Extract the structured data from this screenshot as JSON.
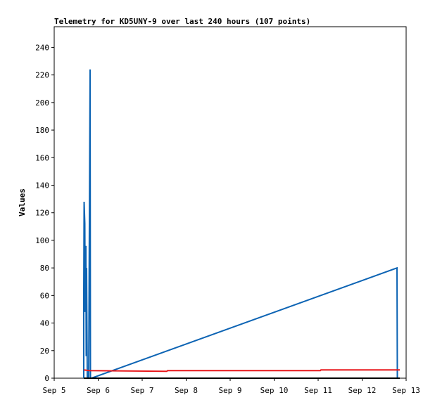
{
  "chart_data": {
    "type": "line",
    "title": "Telemetry for KD5UNY-9 over last 240 hours (107 points)",
    "y_label": "Values",
    "xlim": [
      0,
      8
    ],
    "xticks": [
      {
        "value": 0,
        "label": "Sep 5"
      },
      {
        "value": 1,
        "label": "Sep 6"
      },
      {
        "value": 2,
        "label": "Sep 7"
      },
      {
        "value": 3,
        "label": "Sep 8"
      },
      {
        "value": 4,
        "label": "Sep 9"
      },
      {
        "value": 5,
        "label": "Sep 10"
      },
      {
        "value": 6,
        "label": "Sep 11"
      },
      {
        "value": 7,
        "label": "Sep 12"
      },
      {
        "value": 8,
        "label": "Sep 13"
      }
    ],
    "ylim": [
      0,
      255
    ],
    "yticks": [
      0,
      20,
      40,
      60,
      80,
      100,
      120,
      140,
      160,
      180,
      200,
      220,
      240
    ],
    "series": [
      {
        "color": "#0d64b4",
        "x": [
          0.672,
          0.672,
          0.68,
          0.696,
          0.704,
          0.72,
          0.728,
          0.736,
          0.752,
          0.784,
          0.8,
          0.816,
          0.824,
          0.848,
          7.792,
          7.8
        ],
        "values": [
          0,
          64,
          128,
          112,
          48,
          96,
          16,
          80,
          0,
          0,
          112,
          224,
          0,
          0,
          80,
          0
        ]
      },
      {
        "color": "#e8171b",
        "x": [
          0.672,
          0.8,
          2.56,
          2.576,
          6.048,
          6.064,
          7.856
        ],
        "values": [
          6,
          5.5,
          5,
          5.5,
          5.5,
          6,
          6
        ]
      },
      {
        "color": "#000000",
        "x": [
          0.672,
          7.856
        ],
        "values": [
          0,
          0
        ]
      }
    ]
  }
}
